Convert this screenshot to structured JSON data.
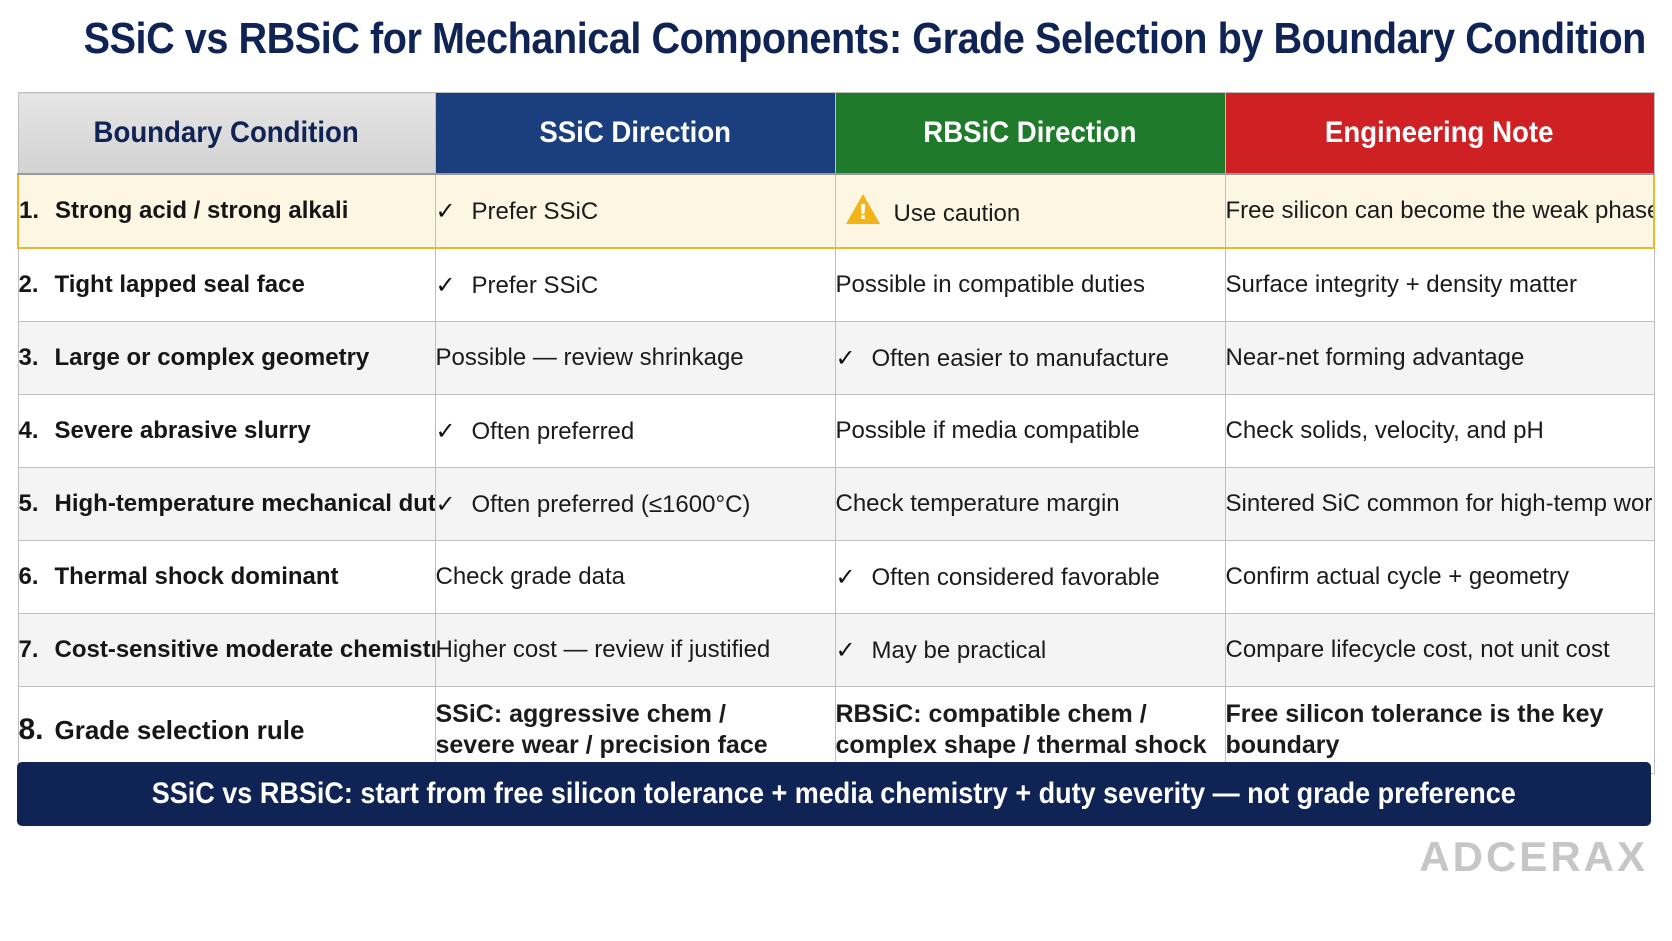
{
  "title": "SSiC vs RBSiC for Mechanical Components: Grade Selection by Boundary Condition",
  "table": {
    "headers": [
      "Boundary Condition",
      "SSiC Direction",
      "RBSiC Direction",
      "Engineering Note"
    ],
    "header_colors": [
      "#d9d9d9",
      "#1b3f7e",
      "#1f7a2b",
      "#cf2023"
    ],
    "rows": [
      {
        "num": "1.",
        "condition": "Strong acid / strong alkali",
        "ssic": "Prefer SSiC",
        "ssic_icon": "check-icon",
        "rbsic": "Use caution",
        "rbsic_icon": "warning-icon",
        "note": "Free silicon can become the weak phase"
      },
      {
        "num": "2.",
        "condition": "Tight lapped seal face",
        "ssic": "Prefer SSiC",
        "ssic_icon": "check-icon",
        "rbsic": "Possible in compatible duties",
        "rbsic_icon": "",
        "note": "Surface integrity + density matter"
      },
      {
        "num": "3.",
        "condition": "Large or complex geometry",
        "ssic": "Possible — review shrinkage",
        "ssic_icon": "",
        "rbsic": "Often easier to manufacture",
        "rbsic_icon": "check-icon",
        "note": "Near-net forming advantage"
      },
      {
        "num": "4.",
        "condition": "Severe abrasive slurry",
        "ssic": "Often preferred",
        "ssic_icon": "check-icon",
        "rbsic": "Possible if media compatible",
        "rbsic_icon": "",
        "note": "Check solids, velocity, and pH"
      },
      {
        "num": "5.",
        "condition": "High-temperature mechanical duty",
        "ssic": "Often preferred (≤1600°C)",
        "ssic_icon": "check-icon",
        "rbsic": "Check temperature margin",
        "rbsic_icon": "",
        "note": "Sintered SiC common for high-temp work"
      },
      {
        "num": "6.",
        "condition": "Thermal shock dominant",
        "ssic": "Check grade data",
        "ssic_icon": "",
        "rbsic": "Often considered favorable",
        "rbsic_icon": "check-icon",
        "note": "Confirm actual cycle + geometry"
      },
      {
        "num": "7.",
        "condition": "Cost-sensitive moderate chemistry",
        "ssic": "Higher cost — review if justified",
        "ssic_icon": "",
        "rbsic": "May be practical",
        "rbsic_icon": "check-icon",
        "note": "Compare lifecycle cost, not unit cost"
      }
    ],
    "rule_row": {
      "num": "8.",
      "condition": "Grade selection rule",
      "ssic_line1": "SSiC: aggressive chem /",
      "ssic_line2": "severe wear / precision face",
      "rbsic_line1": "RBSiC: compatible chem /",
      "rbsic_line2": "complex shape / thermal shock",
      "note": "Free silicon tolerance is the key boundary"
    }
  },
  "check_glyph": "✓",
  "banner": "SSiC vs RBSiC: start from free silicon tolerance + media chemistry + duty severity — not grade preference",
  "logo": "ADCERAX"
}
